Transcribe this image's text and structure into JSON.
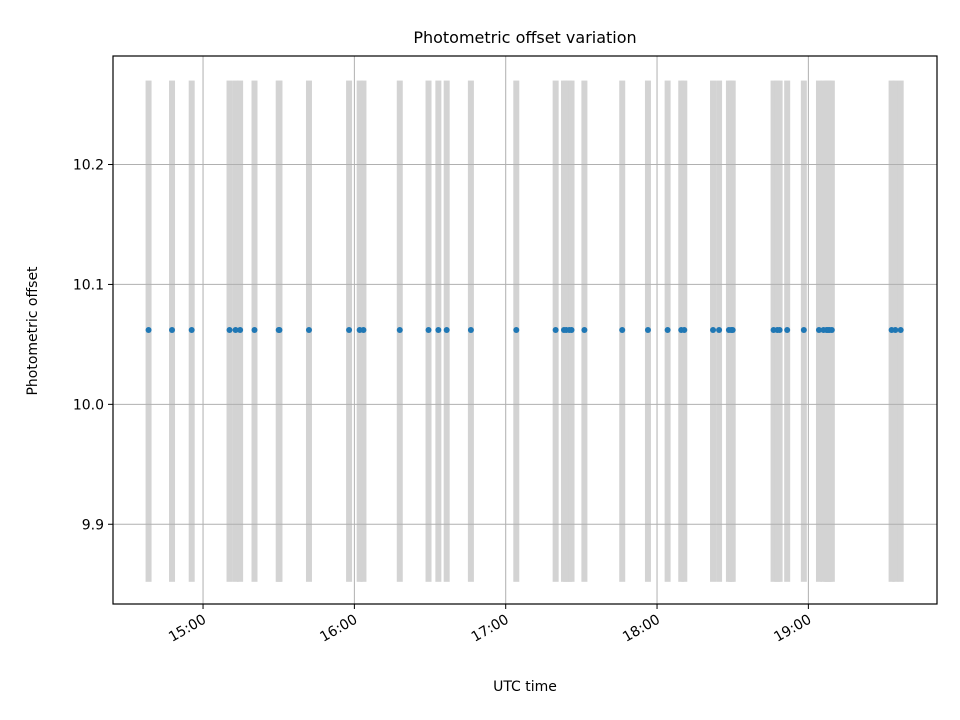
{
  "chart_data": {
    "type": "scatter",
    "title": "Photometric offset variation",
    "xlabel": "UTC time",
    "ylabel": "Photometric offset",
    "x_unit": "hours UTC",
    "xlim": [
      14.405,
      19.85
    ],
    "ylim": [
      9.8335,
      10.2905
    ],
    "grid": true,
    "x_ticks": [
      {
        "value": 15,
        "label": "15:00"
      },
      {
        "value": 16,
        "label": "16:00"
      },
      {
        "value": 17,
        "label": "17:00"
      },
      {
        "value": 18,
        "label": "18:00"
      },
      {
        "value": 19,
        "label": "19:00"
      }
    ],
    "y_ticks": [
      {
        "value": 9.9,
        "label": "9.9"
      },
      {
        "value": 10.0,
        "label": "10.0"
      },
      {
        "value": 10.1,
        "label": "10.1"
      },
      {
        "value": 10.2,
        "label": "10.2"
      }
    ],
    "series": [
      {
        "name": "offset",
        "color": "#1f77b4",
        "y": 10.062,
        "x": [
          14.64,
          14.795,
          14.925,
          15.175,
          15.215,
          15.245,
          15.34,
          15.5,
          15.505,
          15.7,
          15.965,
          16.035,
          16.06,
          16.3,
          16.49,
          16.555,
          16.61,
          16.77,
          17.07,
          17.33,
          17.385,
          17.4,
          17.42,
          17.435,
          17.52,
          17.77,
          17.94,
          18.07,
          18.16,
          18.18,
          18.37,
          18.41,
          18.475,
          18.49,
          18.5,
          18.77,
          18.795,
          18.81,
          18.86,
          18.97,
          19.07,
          19.1,
          19.12,
          19.13,
          19.14,
          19.155,
          19.55,
          19.575,
          19.61
        ]
      }
    ],
    "exposure_bands": {
      "color": "#d3d3d3",
      "y_range": [
        9.852,
        10.27
      ]
    }
  }
}
